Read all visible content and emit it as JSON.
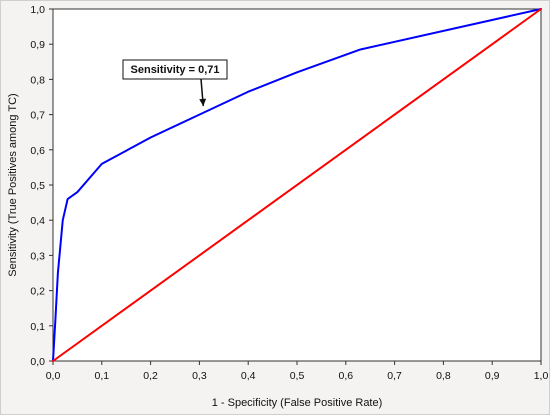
{
  "chart_data": {
    "type": "line",
    "title": "",
    "xlabel": "1 - Specificity (False Positive Rate)",
    "ylabel": "Sensitivity (True Positives among TC)",
    "xlim": [
      0,
      1
    ],
    "ylim": [
      0,
      1
    ],
    "x_ticks": [
      "0,0",
      "0,1",
      "0,2",
      "0,3",
      "0,4",
      "0,5",
      "0,6",
      "0,7",
      "0,8",
      "0,9",
      "1,0"
    ],
    "y_ticks": [
      "0,0",
      "0,1",
      "0,2",
      "0,3",
      "0,4",
      "0,5",
      "0,6",
      "0,7",
      "0,8",
      "0,9",
      "1,0"
    ],
    "grid": false,
    "series": [
      {
        "color": "#0000ff",
        "x": [
          0.0,
          0.005,
          0.01,
          0.02,
          0.03,
          0.05,
          0.1,
          0.2,
          0.3,
          0.4,
          0.5,
          0.63,
          1.0
        ],
        "y": [
          0.0,
          0.12,
          0.25,
          0.4,
          0.46,
          0.48,
          0.56,
          0.635,
          0.7,
          0.765,
          0.82,
          0.885,
          1.0
        ]
      },
      {
        "color": "#ff0000",
        "x": [
          0.0,
          1.0
        ],
        "y": [
          0.0,
          1.0
        ]
      }
    ],
    "annotations": [
      {
        "text": "Sensitivity = 0,71",
        "target_x": 0.31,
        "target_y": 0.71
      }
    ]
  }
}
